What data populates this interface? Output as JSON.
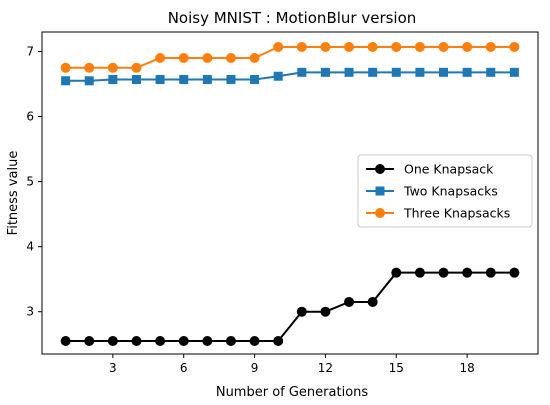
{
  "chart_data": {
    "type": "line",
    "title": "Noisy MNIST : MotionBlur version",
    "xlabel": "Number of Generations",
    "ylabel": "Fitness value",
    "xlim": [
      0,
      21
    ],
    "ylim": [
      2.35,
      7.3
    ],
    "xticks": [
      3,
      6,
      9,
      12,
      15,
      18
    ],
    "yticks": [
      3,
      4,
      5,
      6,
      7
    ],
    "grid": false,
    "legend_position": "center-right",
    "x": [
      1,
      2,
      3,
      4,
      5,
      6,
      7,
      8,
      9,
      10,
      11,
      12,
      13,
      14,
      15,
      16,
      17,
      18,
      19,
      20
    ],
    "series": [
      {
        "name": "One Knapsack",
        "color": "#000000",
        "marker": "circle",
        "values": [
          2.55,
          2.55,
          2.55,
          2.55,
          2.55,
          2.55,
          2.55,
          2.55,
          2.55,
          2.55,
          3.0,
          3.0,
          3.15,
          3.15,
          3.6,
          3.6,
          3.6,
          3.6,
          3.6,
          3.6
        ]
      },
      {
        "name": "Two Knapsacks",
        "color": "#1f77b4",
        "marker": "square",
        "values": [
          6.55,
          6.55,
          6.57,
          6.57,
          6.57,
          6.57,
          6.57,
          6.57,
          6.57,
          6.62,
          6.68,
          6.68,
          6.68,
          6.68,
          6.68,
          6.68,
          6.68,
          6.68,
          6.68,
          6.68
        ]
      },
      {
        "name": "Three Knapsacks",
        "color": "#ff7f0e",
        "marker": "circle",
        "values": [
          6.75,
          6.75,
          6.75,
          6.75,
          6.9,
          6.9,
          6.9,
          6.9,
          6.9,
          7.07,
          7.07,
          7.07,
          7.07,
          7.07,
          7.07,
          7.07,
          7.07,
          7.07,
          7.07,
          7.07
        ]
      }
    ]
  }
}
